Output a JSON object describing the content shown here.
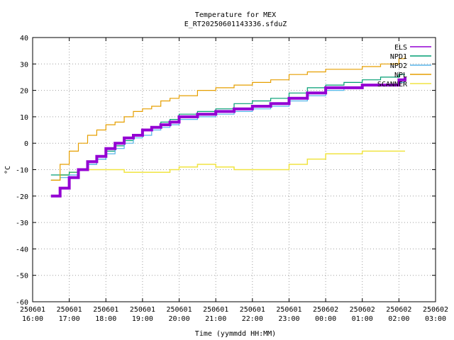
{
  "chart_data": {
    "type": "line",
    "title": "Temperature for MEX",
    "subtitle": "E_RT20250601143336.sfduZ",
    "xlabel": "Time (yymmdd HH:MM)",
    "ylabel": "°C",
    "xlim": [
      "2025-06-01 16:00",
      "2025-06-02 03:00"
    ],
    "ylim": [
      -60,
      40
    ],
    "grid": true,
    "legend_position": "top-right",
    "x_ticks": [
      {
        "date": "250601",
        "time": "16:00",
        "h": 0
      },
      {
        "date": "250601",
        "time": "17:00",
        "h": 1
      },
      {
        "date": "250601",
        "time": "18:00",
        "h": 2
      },
      {
        "date": "250601",
        "time": "19:00",
        "h": 3
      },
      {
        "date": "250601",
        "time": "20:00",
        "h": 4
      },
      {
        "date": "250601",
        "time": "21:00",
        "h": 5
      },
      {
        "date": "250601",
        "time": "22:00",
        "h": 6
      },
      {
        "date": "250601",
        "time": "23:00",
        "h": 7
      },
      {
        "date": "250602",
        "time": "00:00",
        "h": 8
      },
      {
        "date": "250602",
        "time": "01:00",
        "h": 9
      },
      {
        "date": "250602",
        "time": "02:00",
        "h": 10
      },
      {
        "date": "250602",
        "time": "03:00",
        "h": 11
      }
    ],
    "y_ticks": [
      -60,
      -50,
      -40,
      -30,
      -20,
      -10,
      0,
      10,
      20,
      30,
      40
    ],
    "series": [
      {
        "name": "ELS",
        "color": "#9400d3",
        "x": [
          "16:30",
          "16:45",
          "17:00",
          "17:15",
          "17:30",
          "17:45",
          "18:00",
          "18:15",
          "18:30",
          "18:45",
          "19:00",
          "19:15",
          "19:30",
          "19:45",
          "20:00",
          "20:30",
          "21:00",
          "21:30",
          "22:00",
          "22:30",
          "23:00",
          "23:30",
          "00:00",
          "00:30",
          "01:00",
          "01:30",
          "02:00",
          "02:10"
        ],
        "y": [
          -20,
          -17,
          -13,
          -10,
          -7,
          -5,
          -2,
          0,
          2,
          3,
          5,
          6,
          7,
          8,
          10,
          11,
          12,
          13,
          14,
          15,
          17,
          19,
          21,
          21,
          22,
          22,
          24,
          25
        ]
      },
      {
        "name": "NPD1",
        "color": "#009e73",
        "x": [
          "16:30",
          "16:45",
          "17:00",
          "17:15",
          "17:30",
          "17:45",
          "18:00",
          "18:15",
          "18:30",
          "18:45",
          "19:00",
          "19:15",
          "19:30",
          "19:45",
          "20:00",
          "20:30",
          "21:00",
          "21:30",
          "22:00",
          "22:30",
          "23:00",
          "23:30",
          "00:00",
          "00:30",
          "01:00",
          "01:30",
          "02:00",
          "02:10"
        ],
        "y": [
          -12,
          -12,
          -11,
          -10,
          -8,
          -6,
          -3,
          -1,
          1,
          3,
          5,
          6,
          8,
          9,
          11,
          12,
          13,
          15,
          16,
          17,
          19,
          21,
          22,
          23,
          24,
          25,
          26,
          26
        ]
      },
      {
        "name": "NPD2",
        "color": "#56b4e9",
        "x": [
          "16:30",
          "16:45",
          "17:00",
          "17:15",
          "17:30",
          "17:45",
          "18:00",
          "18:15",
          "18:30",
          "18:45",
          "19:00",
          "19:15",
          "19:30",
          "19:45",
          "20:00",
          "20:30",
          "21:00",
          "21:30",
          "22:00",
          "22:30",
          "23:00",
          "23:30",
          "00:00",
          "00:30",
          "01:00",
          "01:30",
          "02:00",
          "02:10"
        ],
        "y": [
          -14,
          -13,
          -12,
          -10,
          -8,
          -6,
          -4,
          -2,
          0,
          2,
          3,
          5,
          6,
          7,
          9,
          10,
          11,
          12,
          13,
          14,
          16,
          18,
          20,
          21,
          22,
          22,
          23,
          23
        ]
      },
      {
        "name": "NPL",
        "color": "#e69f00",
        "x": [
          "16:30",
          "16:45",
          "17:00",
          "17:15",
          "17:30",
          "17:45",
          "18:00",
          "18:15",
          "18:30",
          "18:45",
          "19:00",
          "19:15",
          "19:30",
          "19:45",
          "20:00",
          "20:30",
          "21:00",
          "21:30",
          "22:00",
          "22:30",
          "23:00",
          "23:30",
          "00:00",
          "00:30",
          "01:00",
          "01:30",
          "02:00",
          "02:10"
        ],
        "y": [
          -14,
          -8,
          -3,
          0,
          3,
          5,
          7,
          8,
          10,
          12,
          13,
          14,
          16,
          17,
          18,
          20,
          21,
          22,
          23,
          24,
          26,
          27,
          28,
          28,
          29,
          30,
          32,
          33
        ]
      },
      {
        "name": "SCANNER",
        "color": "#f0e442",
        "x": [
          "16:30",
          "16:45",
          "17:00",
          "17:15",
          "17:30",
          "17:45",
          "18:00",
          "18:15",
          "18:30",
          "18:45",
          "19:00",
          "19:15",
          "19:30",
          "19:45",
          "20:00",
          "20:30",
          "21:00",
          "21:30",
          "22:00",
          "22:30",
          "23:00",
          "23:30",
          "00:00",
          "00:30",
          "01:00",
          "01:30",
          "02:00",
          "02:10"
        ],
        "y": [
          -14,
          -12,
          -11,
          -10,
          -10,
          -10,
          -10,
          -10,
          -11,
          -11,
          -11,
          -11,
          -11,
          -10,
          -9,
          -8,
          -9,
          -10,
          -10,
          -10,
          -8,
          -6,
          -4,
          -4,
          -3,
          -3,
          -3,
          -3
        ]
      }
    ]
  }
}
